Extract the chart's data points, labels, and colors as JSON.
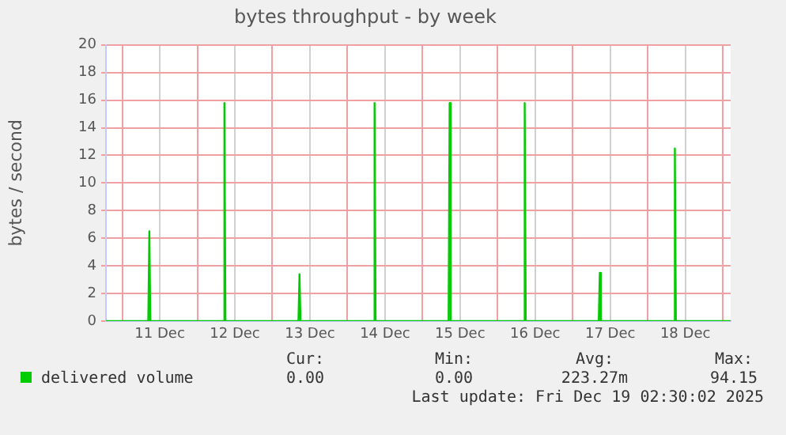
{
  "chart_data": {
    "type": "area",
    "title": "bytes throughput - by week",
    "ylabel": "bytes / second",
    "x": [
      "2025-12-10T18:48",
      "2025-12-11T08:20",
      "2025-12-11T08:40",
      "2025-12-11T09:00",
      "2025-12-12T08:20",
      "2025-12-12T08:40",
      "2025-12-12T09:00",
      "2025-12-13T08:20",
      "2025-12-13T08:40",
      "2025-12-13T09:00",
      "2025-12-14T08:20",
      "2025-12-14T08:40",
      "2025-12-14T09:00",
      "2025-12-15T08:20",
      "2025-12-15T08:40",
      "2025-12-15T09:00",
      "2025-12-16T08:20",
      "2025-12-16T08:40",
      "2025-12-16T09:00",
      "2025-12-17T08:20",
      "2025-12-17T08:40",
      "2025-12-17T09:00",
      "2025-12-18T08:20",
      "2025-12-18T08:40",
      "2025-12-18T09:00",
      "2025-12-19T02:30"
    ],
    "series": [
      {
        "name": "delivered volume",
        "color": "#00cc00",
        "values": [
          0,
          0,
          6.5,
          0,
          0,
          15.8,
          0,
          0,
          3.4,
          0,
          0,
          15.8,
          0,
          0,
          15.8,
          0,
          0,
          15.8,
          0,
          0,
          3.5,
          0,
          0,
          12.5,
          0,
          0
        ]
      }
    ],
    "xlim": [
      "2025-12-10T18:48",
      "2025-12-19T02:30"
    ],
    "xticks": [
      {
        "value": "2025-12-11T00:00",
        "label": null
      },
      {
        "value": "2025-12-11T12:00",
        "label": "11 Dec"
      },
      {
        "value": "2025-12-12T00:00",
        "label": null
      },
      {
        "value": "2025-12-12T12:00",
        "label": "12 Dec"
      },
      {
        "value": "2025-12-13T00:00",
        "label": null
      },
      {
        "value": "2025-12-13T12:00",
        "label": "13 Dec"
      },
      {
        "value": "2025-12-14T00:00",
        "label": null
      },
      {
        "value": "2025-12-14T12:00",
        "label": "14 Dec"
      },
      {
        "value": "2025-12-15T00:00",
        "label": null
      },
      {
        "value": "2025-12-15T12:00",
        "label": "15 Dec"
      },
      {
        "value": "2025-12-16T00:00",
        "label": null
      },
      {
        "value": "2025-12-16T12:00",
        "label": "16 Dec"
      },
      {
        "value": "2025-12-17T00:00",
        "label": null
      },
      {
        "value": "2025-12-17T12:00",
        "label": "17 Dec"
      },
      {
        "value": "2025-12-18T00:00",
        "label": null
      },
      {
        "value": "2025-12-18T12:00",
        "label": "18 Dec"
      },
      {
        "value": "2025-12-19T00:00",
        "label": null
      }
    ],
    "ylim": [
      0,
      20
    ],
    "yticks": [
      0,
      2,
      4,
      6,
      8,
      10,
      12,
      14,
      16,
      18,
      20
    ],
    "grid": true,
    "legend": "bottom",
    "marker": "none",
    "line_style": "solid",
    "annotations": [
      "Cur:",
      "Min:",
      "Avg:",
      "Max:",
      "0.00",
      "0.00",
      "223.27m",
      "94.15",
      "Last update: Fri Dec 19 02:30:02 2025"
    ]
  }
}
